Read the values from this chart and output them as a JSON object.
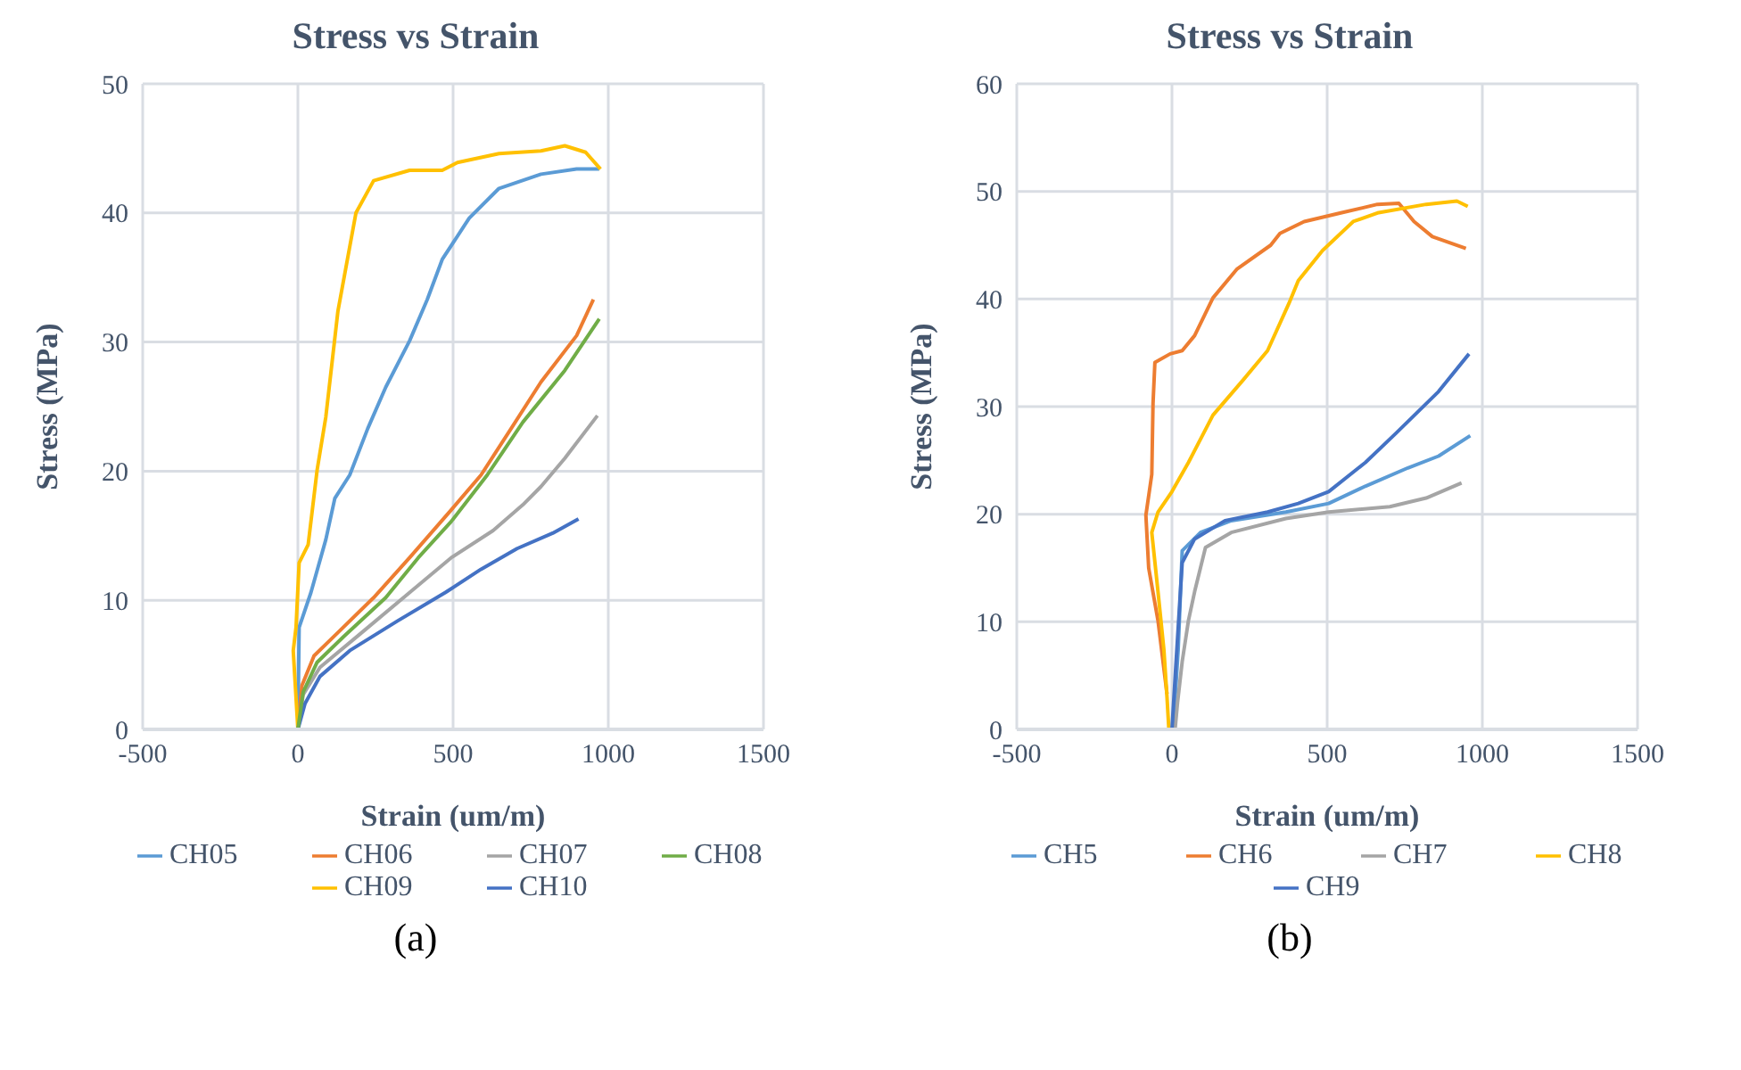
{
  "chart_data": [
    {
      "type": "line",
      "title": "Stress vs Strain",
      "xlabel": "Strain (um/m)",
      "ylabel": "Stress (MPa)",
      "xlim": [
        -500,
        1500
      ],
      "xticks": [
        -500,
        0,
        500,
        1000,
        1500
      ],
      "ylim": [
        0,
        50
      ],
      "yticks": [
        0,
        10,
        20,
        30,
        40,
        50
      ],
      "grid": true,
      "legend": "bottom",
      "annotations": [
        "(a)"
      ],
      "series": [
        {
          "name": "CH05",
          "color": "#5b9bd5",
          "x": [
            0,
            4,
            42,
            90,
            119,
            167,
            225,
            283,
            360,
            417,
            465,
            552,
            648,
            783,
            898,
            971
          ],
          "values": [
            0,
            7.9,
            10.6,
            14.7,
            17.9,
            19.7,
            23.3,
            26.5,
            30.1,
            33.3,
            36.4,
            39.6,
            41.9,
            43,
            43.4,
            43.4
          ]
        },
        {
          "name": "CH06",
          "color": "#ed7d31",
          "x": [
            0,
            13,
            52,
            129,
            244,
            360,
            494,
            590,
            687,
            783,
            898,
            952
          ],
          "values": [
            0,
            3.4,
            5.7,
            7.5,
            10.2,
            13.3,
            17,
            19.7,
            23.3,
            26.9,
            30.5,
            33.3
          ]
        },
        {
          "name": "CH07",
          "color": "#a5a5a5",
          "x": [
            0,
            17,
            71,
            206,
            360,
            494,
            629,
            725,
            783,
            860,
            965
          ],
          "values": [
            0,
            2.7,
            4.8,
            7.5,
            10.6,
            13.3,
            15.4,
            17.4,
            18.8,
            21,
            24.3
          ]
        },
        {
          "name": "CH09",
          "color": "#ffc000",
          "x": [
            0,
            -15,
            -6,
            4,
            33,
            62,
            90,
            129,
            187,
            244,
            360,
            465,
            514,
            648,
            783,
            860,
            927,
            975
          ],
          "values": [
            0,
            6.1,
            7.9,
            12.9,
            14.3,
            20.1,
            24.2,
            32.4,
            40,
            42.5,
            43.3,
            43.3,
            43.9,
            44.6,
            44.8,
            45.2,
            44.7,
            43.4
          ]
        },
        {
          "name": "CH10",
          "color": "#4472c4",
          "x": [
            0,
            23,
            71,
            167,
            321,
            475,
            590,
            706,
            821,
            904
          ],
          "values": [
            0,
            2,
            4.1,
            6.1,
            8.4,
            10.6,
            12.4,
            14,
            15.2,
            16.3
          ]
        },
        {
          "name": "CH08",
          "color": "#70ad47",
          "x": [
            0,
            17,
            62,
            148,
            283,
            388,
            494,
            610,
            725,
            860,
            971
          ],
          "values": [
            0,
            2.9,
            5.2,
            7.2,
            10.2,
            13.3,
            16.1,
            19.7,
            23.8,
            27.8,
            31.8
          ]
        }
      ]
    },
    {
      "type": "line",
      "title": "Stress vs Strain",
      "xlabel": "Strain (um/m)",
      "ylabel": "Stress (MPa)",
      "xlim": [
        -500,
        1500
      ],
      "xticks": [
        -500,
        0,
        500,
        1000,
        1500
      ],
      "ylim": [
        0,
        60
      ],
      "yticks": [
        0,
        10,
        20,
        30,
        40,
        50,
        60
      ],
      "grid": true,
      "legend": "bottom",
      "annotations": [
        "(b)"
      ],
      "series": [
        {
          "name": "CH5",
          "color": "#5b9bd5",
          "x": [
            4,
            20,
            33,
            92,
            191,
            367,
            505,
            623,
            760,
            859,
            961
          ],
          "values": [
            0,
            7.4,
            16.6,
            18.3,
            19.4,
            20.2,
            21,
            22.6,
            24.3,
            25.4,
            27.3
          ]
        },
        {
          "name": "CH6",
          "color": "#ed7d31",
          "x": [
            -16,
            -45,
            -75,
            -84,
            -65,
            -61,
            -55,
            -6,
            33,
            73,
            132,
            210,
            318,
            348,
            426,
            544,
            662,
            731,
            780,
            839,
            947
          ],
          "values": [
            3.3,
            10.1,
            15,
            19.9,
            23.7,
            30.3,
            34.1,
            34.9,
            35.2,
            36.6,
            40.1,
            42.8,
            45,
            46.1,
            47.2,
            48,
            48.8,
            48.9,
            47.2,
            45.8,
            44.7
          ]
        },
        {
          "name": "CH7",
          "color": "#a5a5a5",
          "x": [
            10,
            18,
            33,
            53,
            73,
            108,
            191,
            367,
            505,
            702,
            819,
            933
          ],
          "values": [
            0,
            2.5,
            6.3,
            10.1,
            12.8,
            16.9,
            18.3,
            19.6,
            20.2,
            20.7,
            21.5,
            22.9
          ]
        },
        {
          "name": "CH8",
          "color": "#ffc000",
          "x": [
            -10,
            -16,
            -26,
            -45,
            -65,
            -45,
            0,
            53,
            132,
            230,
            308,
            377,
            407,
            485,
            584,
            662,
            819,
            918,
            953
          ],
          "values": [
            0,
            3,
            7.4,
            12.8,
            18.3,
            20.2,
            22.1,
            24.8,
            29.2,
            32.5,
            35.2,
            39.6,
            41.7,
            44.5,
            47.2,
            48,
            48.8,
            49.1,
            48.6
          ]
        },
        {
          "name": "CH9",
          "color": "#4472c4",
          "x": [
            0,
            18,
            33,
            73,
            171,
            308,
            407,
            505,
            623,
            721,
            859,
            957
          ],
          "values": [
            0,
            8.5,
            15.5,
            17.7,
            19.4,
            20.2,
            21,
            22.1,
            24.8,
            27.5,
            31.4,
            34.9
          ]
        }
      ]
    }
  ]
}
